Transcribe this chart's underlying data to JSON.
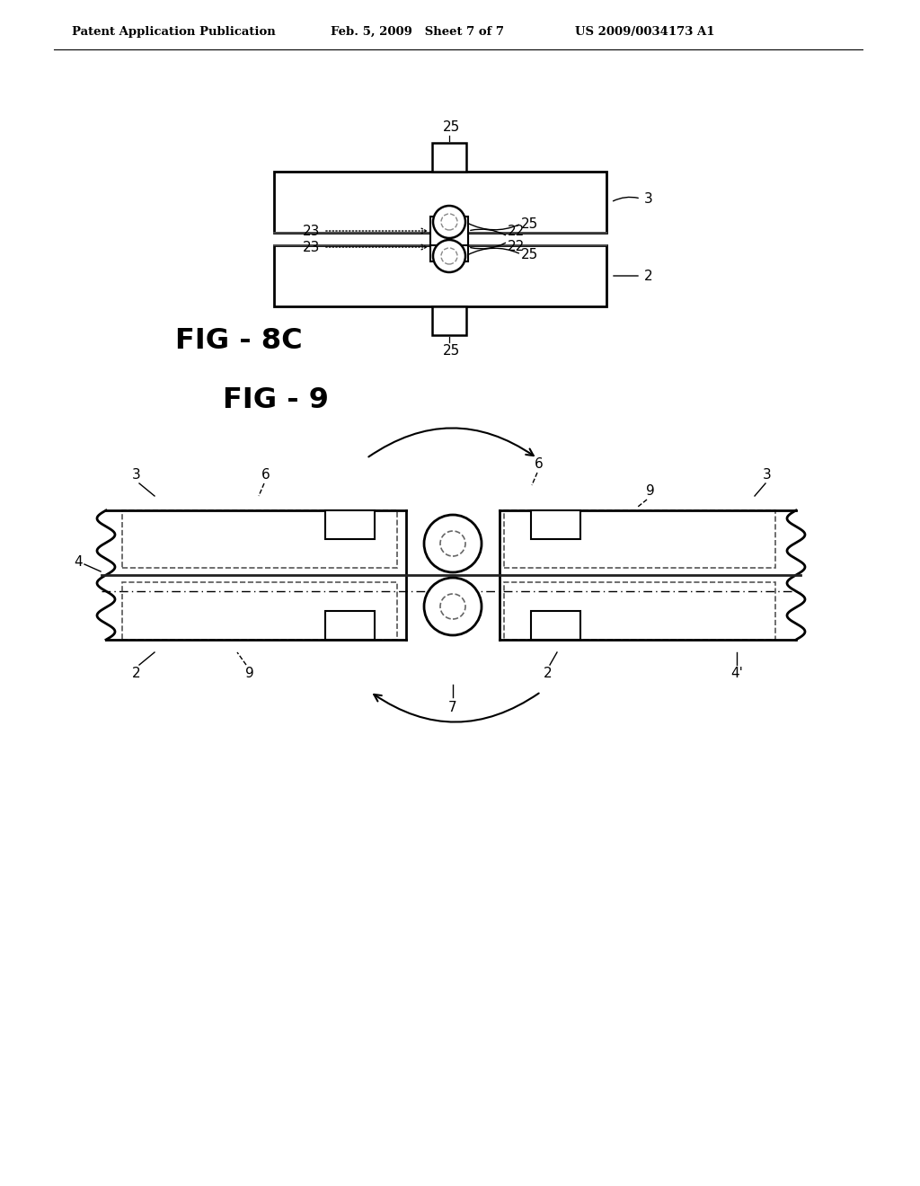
{
  "bg_color": "#ffffff",
  "line_color": "#000000",
  "dashed_color": "#777777",
  "header_left": "Patent Application Publication",
  "header_mid": "Feb. 5, 2009   Sheet 7 of 7",
  "header_right": "US 2009/0034173 A1",
  "fig8c_label": "FIG - 8C",
  "fig9_label": "FIG - 9"
}
